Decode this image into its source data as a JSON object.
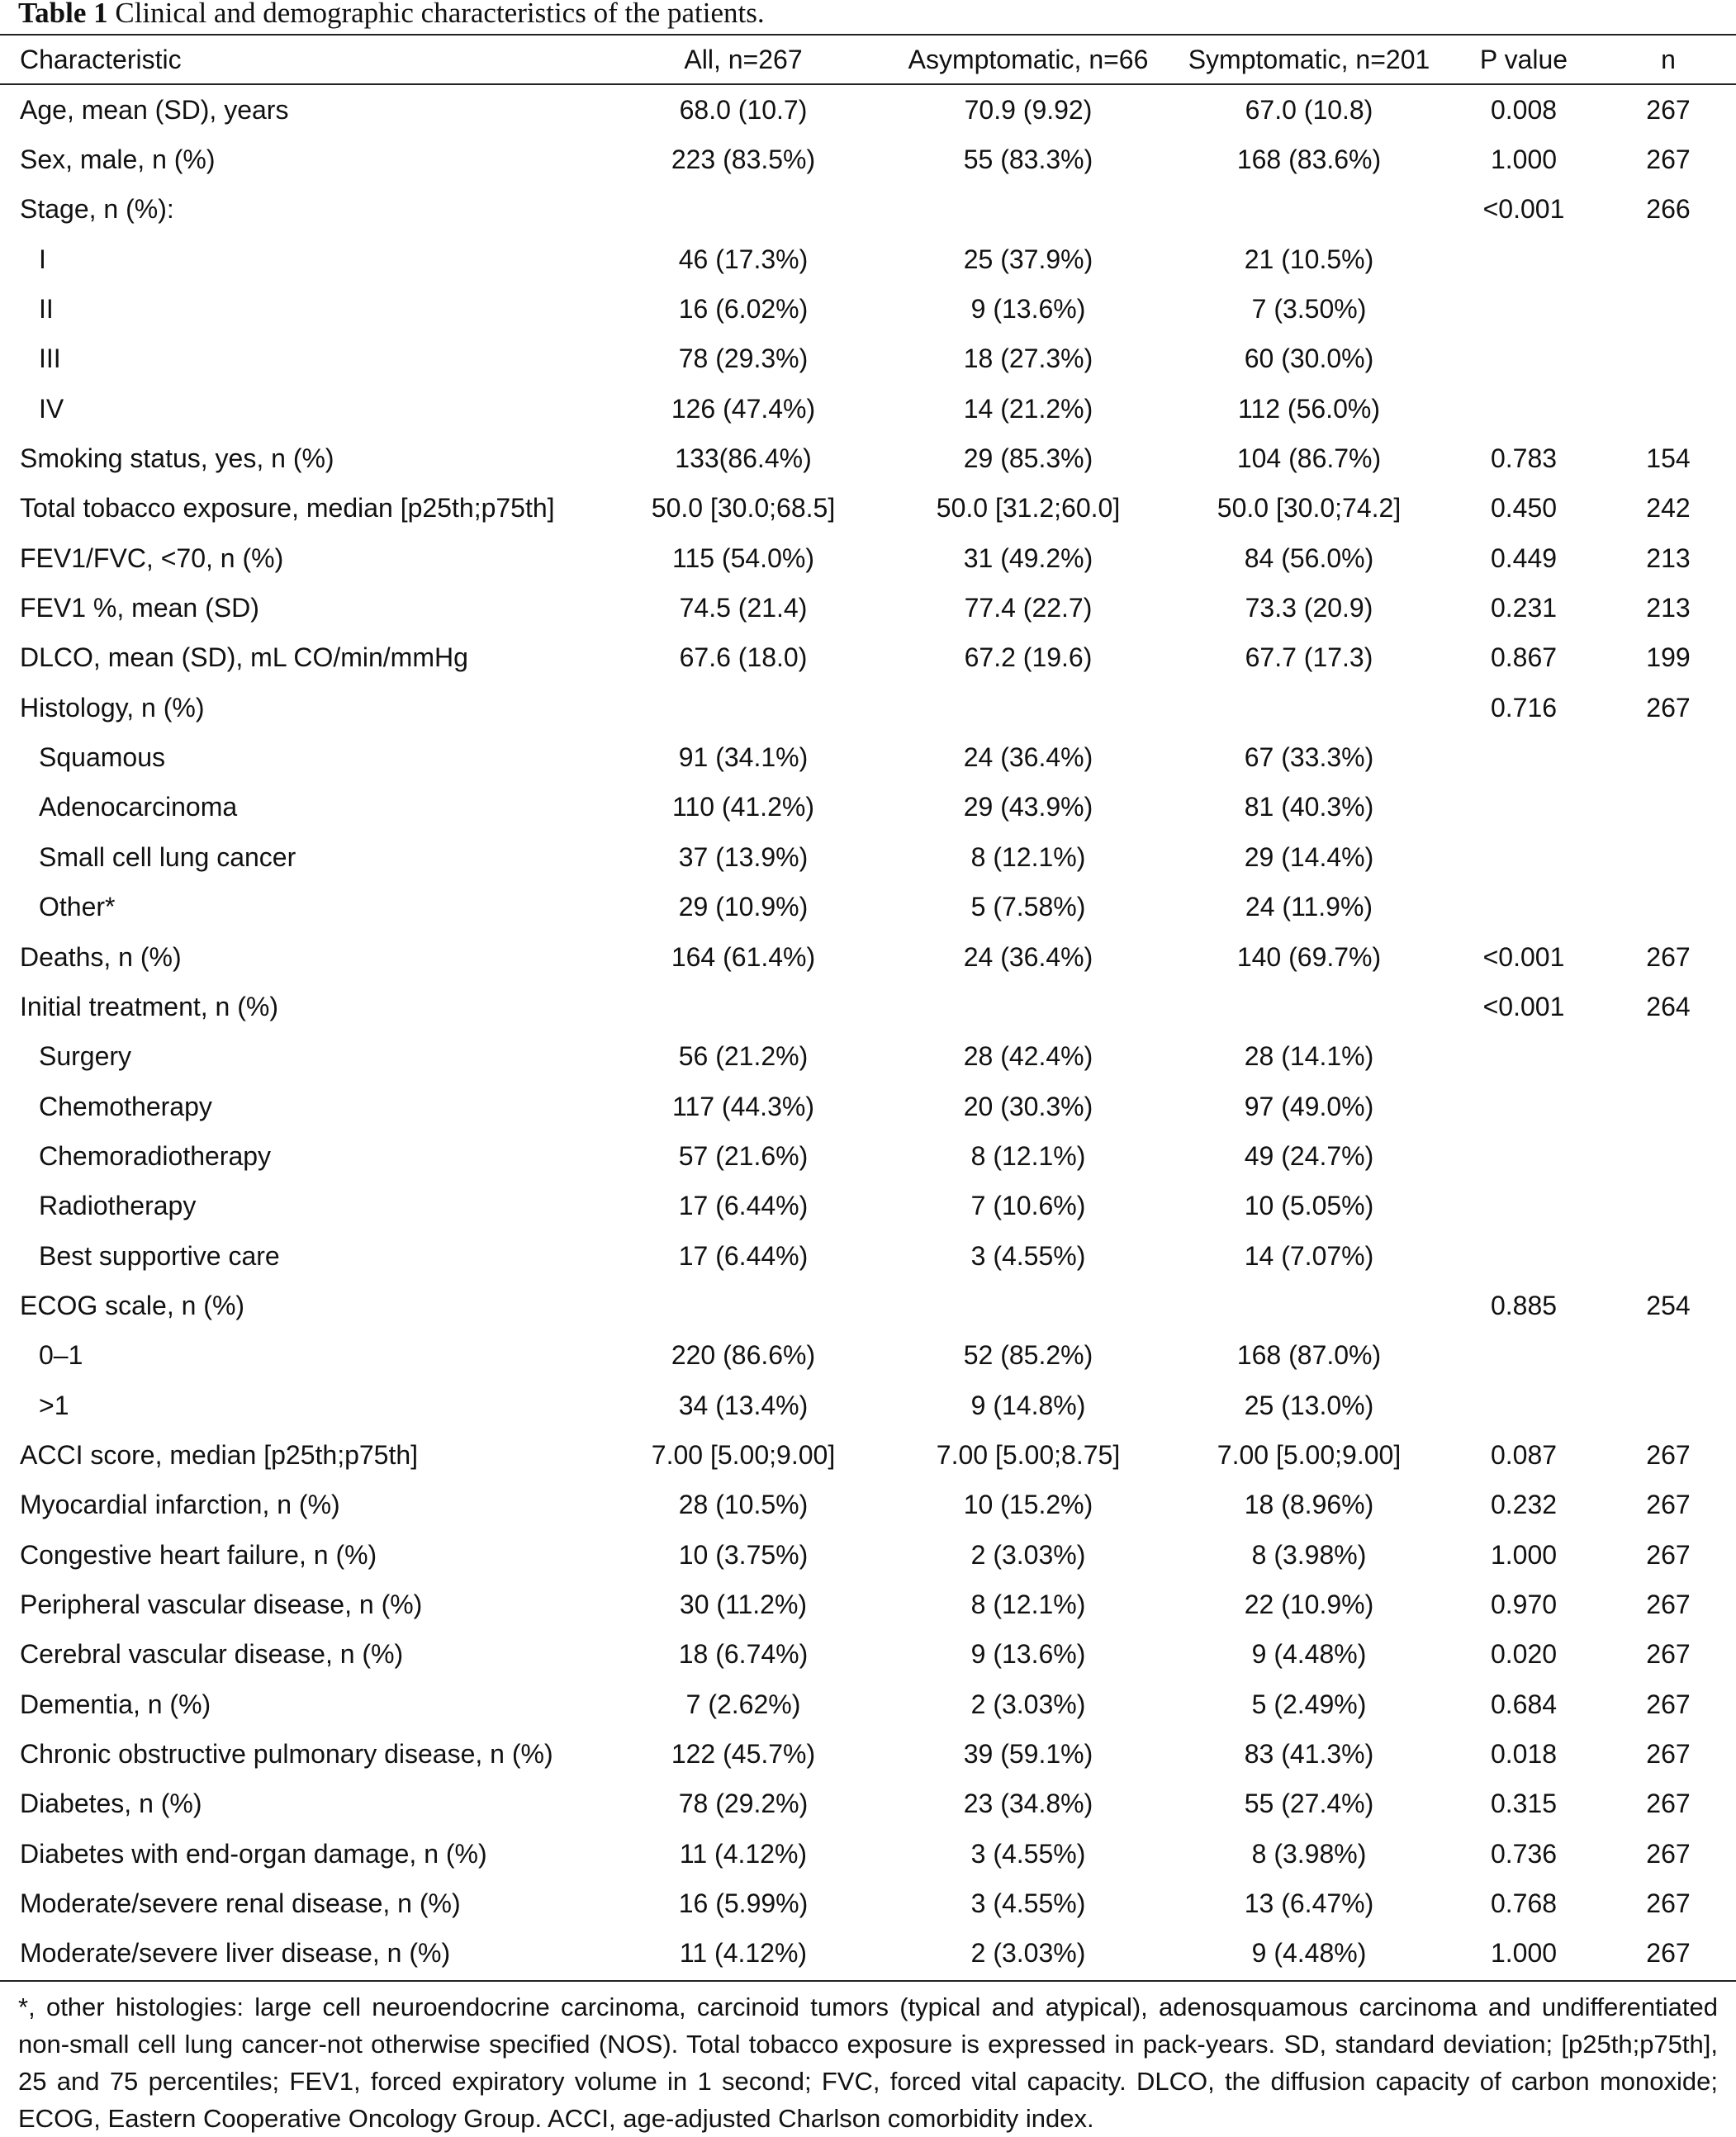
{
  "caption": {
    "label": "Table 1",
    "text": "Clinical and demographic characteristics of the patients."
  },
  "header": {
    "characteristic": "Characteristic",
    "all": "All, n=267",
    "asymptomatic": "Asymptomatic, n=66",
    "symptomatic": "Symptomatic, n=201",
    "p_value": "P value",
    "n": "n"
  },
  "rows": [
    {
      "label": "Age, mean (SD), years",
      "all": "68.0 (10.7)",
      "asym": "70.9 (9.92)",
      "sym": "67.0 (10.8)",
      "p": "0.008",
      "n": "267",
      "indent": false
    },
    {
      "label": "Sex, male, n (%)",
      "all": "223 (83.5%)",
      "asym": "55 (83.3%)",
      "sym": "168 (83.6%)",
      "p": "1.000",
      "n": "267",
      "indent": false
    },
    {
      "label": "Stage, n (%):",
      "all": "",
      "asym": "",
      "sym": "",
      "p": "<0.001",
      "n": "266",
      "indent": false
    },
    {
      "label": "I",
      "all": "46 (17.3%)",
      "asym": "25 (37.9%)",
      "sym": "21 (10.5%)",
      "p": "",
      "n": "",
      "indent": true
    },
    {
      "label": "II",
      "all": "16 (6.02%)",
      "asym": "9 (13.6%)",
      "sym": "7 (3.50%)",
      "p": "",
      "n": "",
      "indent": true
    },
    {
      "label": "III",
      "all": "78 (29.3%)",
      "asym": "18 (27.3%)",
      "sym": "60 (30.0%)",
      "p": "",
      "n": "",
      "indent": true
    },
    {
      "label": "IV",
      "all": "126 (47.4%)",
      "asym": "14 (21.2%)",
      "sym": "112 (56.0%)",
      "p": "",
      "n": "",
      "indent": true
    },
    {
      "label": "Smoking status, yes, n (%)",
      "all": "133(86.4%)",
      "asym": "29 (85.3%)",
      "sym": "104 (86.7%)",
      "p": "0.783",
      "n": "154",
      "indent": false
    },
    {
      "label": "Total tobacco exposure, median [p25th;p75th]",
      "all": "50.0 [30.0;68.5]",
      "asym": "50.0 [31.2;60.0]",
      "sym": "50.0 [30.0;74.2]",
      "p": "0.450",
      "n": "242",
      "indent": false
    },
    {
      "label": "FEV1/FVC, <70, n (%)",
      "all": "115 (54.0%)",
      "asym": "31 (49.2%)",
      "sym": "84 (56.0%)",
      "p": "0.449",
      "n": "213",
      "indent": false
    },
    {
      "label": "FEV1 %, mean (SD)",
      "all": "74.5 (21.4)",
      "asym": "77.4 (22.7)",
      "sym": "73.3 (20.9)",
      "p": "0.231",
      "n": "213",
      "indent": false
    },
    {
      "label": "DLCO, mean (SD), mL CO/min/mmHg",
      "all": "67.6 (18.0)",
      "asym": "67.2 (19.6)",
      "sym": "67.7 (17.3)",
      "p": "0.867",
      "n": "199",
      "indent": false
    },
    {
      "label": "Histology, n (%)",
      "all": "",
      "asym": "",
      "sym": "",
      "p": "0.716",
      "n": "267",
      "indent": false
    },
    {
      "label": "Squamous",
      "all": "91 (34.1%)",
      "asym": "24 (36.4%)",
      "sym": "67 (33.3%)",
      "p": "",
      "n": "",
      "indent": true
    },
    {
      "label": "Adenocarcinoma",
      "all": "110 (41.2%)",
      "asym": "29 (43.9%)",
      "sym": "81 (40.3%)",
      "p": "",
      "n": "",
      "indent": true
    },
    {
      "label": "Small cell lung cancer",
      "all": "37 (13.9%)",
      "asym": "8 (12.1%)",
      "sym": "29 (14.4%)",
      "p": "",
      "n": "",
      "indent": true
    },
    {
      "label": "Other*",
      "all": "29 (10.9%)",
      "asym": "5 (7.58%)",
      "sym": "24 (11.9%)",
      "p": "",
      "n": "",
      "indent": true
    },
    {
      "label": "Deaths, n (%)",
      "all": "164 (61.4%)",
      "asym": "24 (36.4%)",
      "sym": "140 (69.7%)",
      "p": "<0.001",
      "n": "267",
      "indent": false
    },
    {
      "label": "Initial treatment, n (%)",
      "all": "",
      "asym": "",
      "sym": "",
      "p": "<0.001",
      "n": "264",
      "indent": false
    },
    {
      "label": "Surgery",
      "all": "56 (21.2%)",
      "asym": "28 (42.4%)",
      "sym": "28 (14.1%)",
      "p": "",
      "n": "",
      "indent": true
    },
    {
      "label": "Chemotherapy",
      "all": "117 (44.3%)",
      "asym": "20 (30.3%)",
      "sym": "97 (49.0%)",
      "p": "",
      "n": "",
      "indent": true
    },
    {
      "label": "Chemoradiotherapy",
      "all": "57 (21.6%)",
      "asym": "8 (12.1%)",
      "sym": "49 (24.7%)",
      "p": "",
      "n": "",
      "indent": true
    },
    {
      "label": "Radiotherapy",
      "all": "17 (6.44%)",
      "asym": "7 (10.6%)",
      "sym": "10 (5.05%)",
      "p": "",
      "n": "",
      "indent": true
    },
    {
      "label": "Best supportive care",
      "all": "17 (6.44%)",
      "asym": "3 (4.55%)",
      "sym": "14 (7.07%)",
      "p": "",
      "n": "",
      "indent": true
    },
    {
      "label": "ECOG scale, n (%)",
      "all": "",
      "asym": "",
      "sym": "",
      "p": "0.885",
      "n": "254",
      "indent": false
    },
    {
      "label": "0–1",
      "all": "220 (86.6%)",
      "asym": "52 (85.2%)",
      "sym": "168 (87.0%)",
      "p": "",
      "n": "",
      "indent": true
    },
    {
      "label": ">1",
      "all": "34 (13.4%)",
      "asym": "9 (14.8%)",
      "sym": "25 (13.0%)",
      "p": "",
      "n": "",
      "indent": true
    },
    {
      "label": "ACCI score, median [p25th;p75th]",
      "all": "7.00 [5.00;9.00]",
      "asym": "7.00 [5.00;8.75]",
      "sym": "7.00 [5.00;9.00]",
      "p": "0.087",
      "n": "267",
      "indent": false
    },
    {
      "label": "Myocardial infarction, n (%)",
      "all": "28 (10.5%)",
      "asym": "10 (15.2%)",
      "sym": "18 (8.96%)",
      "p": "0.232",
      "n": "267",
      "indent": false
    },
    {
      "label": "Congestive heart failure, n (%)",
      "all": "10 (3.75%)",
      "asym": "2 (3.03%)",
      "sym": "8 (3.98%)",
      "p": "1.000",
      "n": "267",
      "indent": false
    },
    {
      "label": "Peripheral vascular disease, n (%)",
      "all": "30 (11.2%)",
      "asym": "8 (12.1%)",
      "sym": "22 (10.9%)",
      "p": "0.970",
      "n": "267",
      "indent": false
    },
    {
      "label": "Cerebral vascular disease, n (%)",
      "all": "18 (6.74%)",
      "asym": "9 (13.6%)",
      "sym": "9 (4.48%)",
      "p": "0.020",
      "n": "267",
      "indent": false
    },
    {
      "label": "Dementia, n (%)",
      "all": "7 (2.62%)",
      "asym": "2 (3.03%)",
      "sym": "5 (2.49%)",
      "p": "0.684",
      "n": "267",
      "indent": false
    },
    {
      "label": "Chronic obstructive pulmonary disease, n (%)",
      "all": "122 (45.7%)",
      "asym": "39 (59.1%)",
      "sym": "83 (41.3%)",
      "p": "0.018",
      "n": "267",
      "indent": false
    },
    {
      "label": "Diabetes, n (%)",
      "all": "78 (29.2%)",
      "asym": "23 (34.8%)",
      "sym": "55 (27.4%)",
      "p": "0.315",
      "n": "267",
      "indent": false
    },
    {
      "label": "Diabetes with end-organ damage, n (%)",
      "all": "11 (4.12%)",
      "asym": "3 (4.55%)",
      "sym": "8 (3.98%)",
      "p": "0.736",
      "n": "267",
      "indent": false
    },
    {
      "label": "Moderate/severe renal disease, n (%)",
      "all": "16 (5.99%)",
      "asym": "3 (4.55%)",
      "sym": "13 (6.47%)",
      "p": "0.768",
      "n": "267",
      "indent": false
    },
    {
      "label": "Moderate/severe liver disease, n (%)",
      "all": "11 (4.12%)",
      "asym": "2 (3.03%)",
      "sym": "9 (4.48%)",
      "p": "1.000",
      "n": "267",
      "indent": false
    }
  ],
  "footnote": "*, other histologies: large cell neuroendocrine carcinoma, carcinoid tumors (typical and atypical), adenosquamous carcinoma and undifferentiated non-small cell lung cancer-not otherwise specified (NOS). Total tobacco exposure is expressed in pack-years. SD, standard deviation; [p25th;p75th], 25 and 75 percentiles; FEV1, forced expiratory volume in 1 second; FVC, forced vital capacity. DLCO, the diffusion capacity of carbon monoxide; ECOG, Eastern Cooperative Oncology Group. ACCI, age-adjusted Charlson comorbidity index."
}
